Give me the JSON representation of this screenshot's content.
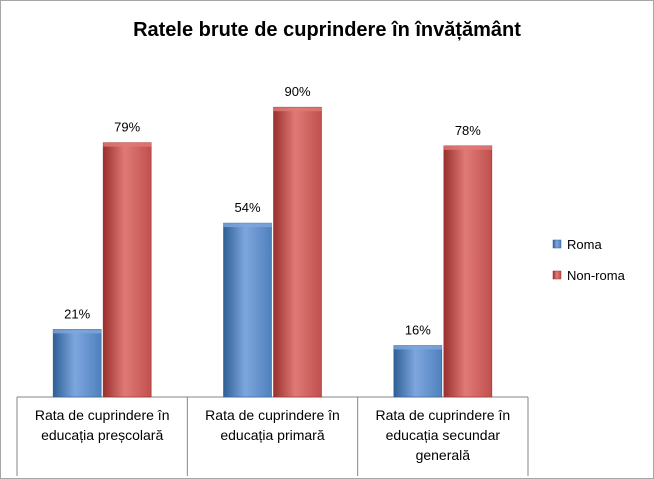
{
  "chart_data": {
    "type": "bar",
    "title": "Ratele  brute de cuprindere în învățământ",
    "categories": [
      [
        "Rata de cuprindere în",
        "educația preșcolară"
      ],
      [
        "Rata de cuprindere în",
        "educația primară"
      ],
      [
        "Rata de cuprindere în",
        "educația secundar",
        "generală"
      ]
    ],
    "series": [
      {
        "name": "Roma",
        "values": [
          21,
          54,
          16
        ],
        "labels": [
          "21%",
          "54%",
          "16%"
        ],
        "color": "#4f81bd",
        "color_light": "#7ea6de",
        "color_dark": "#2f5f96"
      },
      {
        "name": "Non-roma",
        "values": [
          79,
          90,
          78
        ],
        "labels": [
          "79%",
          "90%",
          "78%"
        ],
        "color": "#c0504d",
        "color_light": "#e07a77",
        "color_dark": "#9a302d"
      }
    ],
    "ylim": [
      0,
      100
    ],
    "grid": false,
    "legend_position": "right"
  }
}
